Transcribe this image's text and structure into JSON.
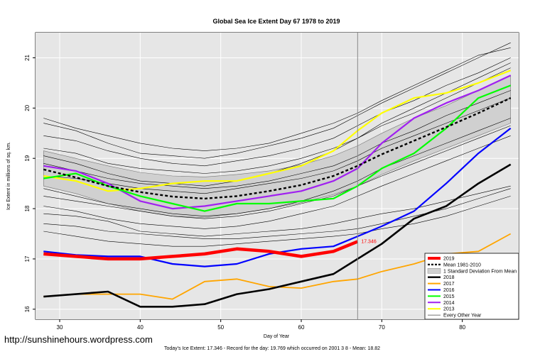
{
  "watermark": "http://sunshinehours.wordpress.com",
  "footer": "Today's Ice Extent: 17.346  - Record for the day: 19.769 which occurred on 2001 3 8  - Mean: 18.82",
  "colors": {
    "y2019": "#ff0000",
    "mean": "#000000",
    "band": "#d0d0d0",
    "y2018": "#000000",
    "y2017": "#ffa500",
    "y2016": "#0000ff",
    "y2015": "#00ff00",
    "y2014": "#a020f0",
    "y2013": "#ffff00",
    "other": "#000000",
    "marker": "#888888"
  },
  "chart_data": {
    "type": "line",
    "title": "Global Sea Ice Extent Day 67 1978 to 2019",
    "xlabel": "Day of Year",
    "ylabel": "Ice Extent in millions of sq. km.",
    "xlim": [
      27,
      87
    ],
    "ylim": [
      15.8,
      21.5
    ],
    "xticks": [
      "30",
      "40",
      "50",
      "60",
      "70",
      "80"
    ],
    "yticks": [
      "16",
      "17",
      "18",
      "19",
      "20",
      "21"
    ],
    "marker_day": 67,
    "current_label": "17.346",
    "x": [
      28,
      32,
      36,
      40,
      44,
      48,
      52,
      56,
      60,
      64,
      67,
      70,
      74,
      78,
      82,
      86
    ],
    "legend": [
      "2019",
      "Mean 1981-2010",
      "1 Standard Deviation From Mean",
      "2018",
      "2017",
      "2016",
      "2015",
      "2014",
      "2013",
      "Every Other Year"
    ],
    "legend_position": "bottom-right",
    "series": [
      {
        "name": "Mean 1981-2010",
        "values": [
          18.78,
          18.62,
          18.45,
          18.33,
          18.24,
          18.2,
          18.25,
          18.35,
          18.47,
          18.65,
          18.85,
          19.08,
          19.35,
          19.62,
          19.9,
          20.2
        ]
      },
      {
        "name": "1 Standard Deviation From Mean",
        "lower": [
          18.45,
          18.3,
          18.1,
          17.95,
          17.85,
          17.82,
          17.9,
          18.0,
          18.12,
          18.28,
          18.45,
          18.68,
          18.95,
          19.2,
          19.45,
          19.7
        ],
        "upper": [
          19.15,
          19.0,
          18.85,
          18.72,
          18.65,
          18.63,
          18.68,
          18.75,
          18.87,
          19.05,
          19.25,
          19.5,
          19.8,
          20.05,
          20.35,
          20.65
        ]
      },
      {
        "name": "2019",
        "values": [
          17.1,
          17.05,
          17.0,
          17.0,
          17.05,
          17.1,
          17.2,
          17.15,
          17.05,
          17.15,
          17.346,
          null,
          null,
          null,
          null,
          null
        ]
      },
      {
        "name": "2018",
        "values": [
          16.25,
          16.3,
          16.35,
          16.05,
          16.05,
          16.1,
          16.3,
          16.4,
          16.55,
          16.7,
          17.0,
          17.3,
          17.8,
          18.05,
          18.5,
          18.88
        ]
      },
      {
        "name": "2017",
        "values": [
          16.25,
          16.3,
          16.3,
          16.3,
          16.2,
          16.55,
          16.6,
          16.45,
          16.42,
          16.55,
          16.6,
          16.75,
          16.9,
          17.1,
          17.15,
          17.5
        ]
      },
      {
        "name": "2016",
        "values": [
          17.15,
          17.08,
          17.05,
          17.05,
          16.9,
          16.85,
          16.9,
          17.1,
          17.2,
          17.25,
          17.45,
          17.65,
          17.95,
          18.5,
          19.1,
          19.6
        ]
      },
      {
        "name": "2015",
        "values": [
          18.6,
          18.7,
          18.45,
          18.25,
          18.1,
          17.95,
          18.1,
          18.1,
          18.15,
          18.2,
          18.45,
          18.8,
          19.1,
          19.6,
          20.2,
          20.45
        ]
      },
      {
        "name": "2014",
        "values": [
          18.85,
          18.75,
          18.5,
          18.15,
          18.0,
          18.05,
          18.15,
          18.25,
          18.35,
          18.55,
          18.8,
          19.3,
          19.8,
          20.1,
          20.35,
          20.65
        ]
      },
      {
        "name": "2013",
        "values": [
          18.65,
          18.55,
          18.35,
          18.4,
          18.5,
          18.55,
          18.55,
          18.7,
          18.85,
          19.15,
          19.55,
          19.9,
          20.2,
          20.3,
          20.5,
          20.75
        ]
      }
    ],
    "other_years": [
      [
        19.7,
        19.55,
        19.3,
        19.1,
        19.05,
        19.0,
        19.1,
        19.25,
        19.4,
        19.6,
        19.85,
        20.1,
        20.4,
        20.7,
        21.0,
        21.3
      ],
      [
        19.2,
        19.1,
        18.9,
        18.8,
        18.75,
        18.7,
        18.75,
        18.85,
        19.0,
        19.2,
        19.4,
        19.65,
        19.9,
        20.2,
        20.5,
        20.8
      ],
      [
        18.9,
        18.75,
        18.6,
        18.5,
        18.45,
        18.4,
        18.45,
        18.55,
        18.7,
        18.85,
        19.05,
        19.3,
        19.55,
        19.85,
        20.1,
        20.35
      ],
      [
        18.4,
        18.25,
        18.1,
        18.0,
        17.9,
        17.85,
        17.9,
        18.0,
        18.15,
        18.35,
        18.55,
        18.8,
        19.05,
        19.3,
        19.55,
        19.8
      ],
      [
        18.05,
        17.95,
        17.8,
        17.7,
        17.65,
        17.6,
        17.65,
        17.75,
        17.9,
        18.05,
        18.25,
        18.45,
        18.7,
        18.95,
        19.2,
        19.45
      ],
      [
        17.9,
        17.85,
        17.75,
        17.55,
        17.5,
        17.45,
        17.5,
        17.55,
        17.6,
        17.7,
        17.8,
        17.9,
        18.0,
        18.15,
        18.3,
        18.45
      ],
      [
        19.8,
        19.6,
        19.45,
        19.3,
        19.2,
        19.15,
        19.2,
        19.3,
        19.5,
        19.7,
        19.9,
        20.15,
        20.45,
        20.75,
        21.05,
        21.2
      ],
      [
        19.45,
        19.35,
        19.15,
        19.0,
        18.9,
        18.85,
        18.95,
        19.05,
        19.2,
        19.4,
        19.65,
        19.9,
        20.15,
        20.45,
        20.7,
        21.0
      ],
      [
        18.65,
        18.6,
        18.5,
        18.4,
        18.35,
        18.3,
        18.4,
        18.5,
        18.6,
        18.75,
        18.95,
        19.2,
        19.45,
        19.7,
        19.95,
        20.2
      ],
      [
        18.25,
        18.15,
        18.05,
        17.95,
        17.85,
        17.8,
        17.85,
        17.95,
        18.1,
        18.25,
        18.45,
        18.65,
        18.9,
        19.15,
        19.4,
        19.65
      ],
      [
        17.7,
        17.65,
        17.55,
        17.5,
        17.45,
        17.4,
        17.4,
        17.45,
        17.5,
        17.55,
        17.6,
        17.7,
        17.85,
        18.0,
        18.2,
        18.4
      ],
      [
        17.55,
        17.45,
        17.35,
        17.3,
        17.25,
        17.25,
        17.3,
        17.35,
        17.4,
        17.45,
        17.5,
        17.6,
        17.7,
        17.85,
        18.05,
        18.25
      ],
      [
        19.05,
        18.9,
        18.7,
        18.55,
        18.5,
        18.45,
        18.55,
        18.7,
        18.9,
        19.15,
        19.4,
        19.7,
        20.0,
        20.3,
        20.6,
        20.9
      ]
    ]
  }
}
